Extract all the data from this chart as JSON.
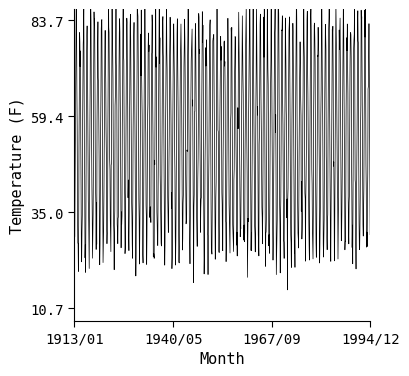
{
  "title": "",
  "xlabel": "Month",
  "ylabel": "Temperature (F)",
  "start_year": 1913,
  "start_month": 1,
  "end_year": 1994,
  "end_month": 12,
  "yticks": [
    10.7,
    35.0,
    59.4,
    83.7
  ],
  "xtick_labels": [
    "1913/01",
    "1940/05",
    "1967/09",
    "1994/12"
  ],
  "xtick_years": [
    1913.0,
    1940.333,
    1967.667,
    1994.917
  ],
  "ylim_min": 7.5,
  "ylim_max": 86.5,
  "mean_temp": 54.3,
  "amplitude": 28.5,
  "noise_std": 5.0,
  "line_color": "#000000",
  "line_width": 0.5,
  "bg_color": "#ffffff",
  "font_size": 10,
  "xlabel_fontsize": 11,
  "ylabel_fontsize": 11
}
